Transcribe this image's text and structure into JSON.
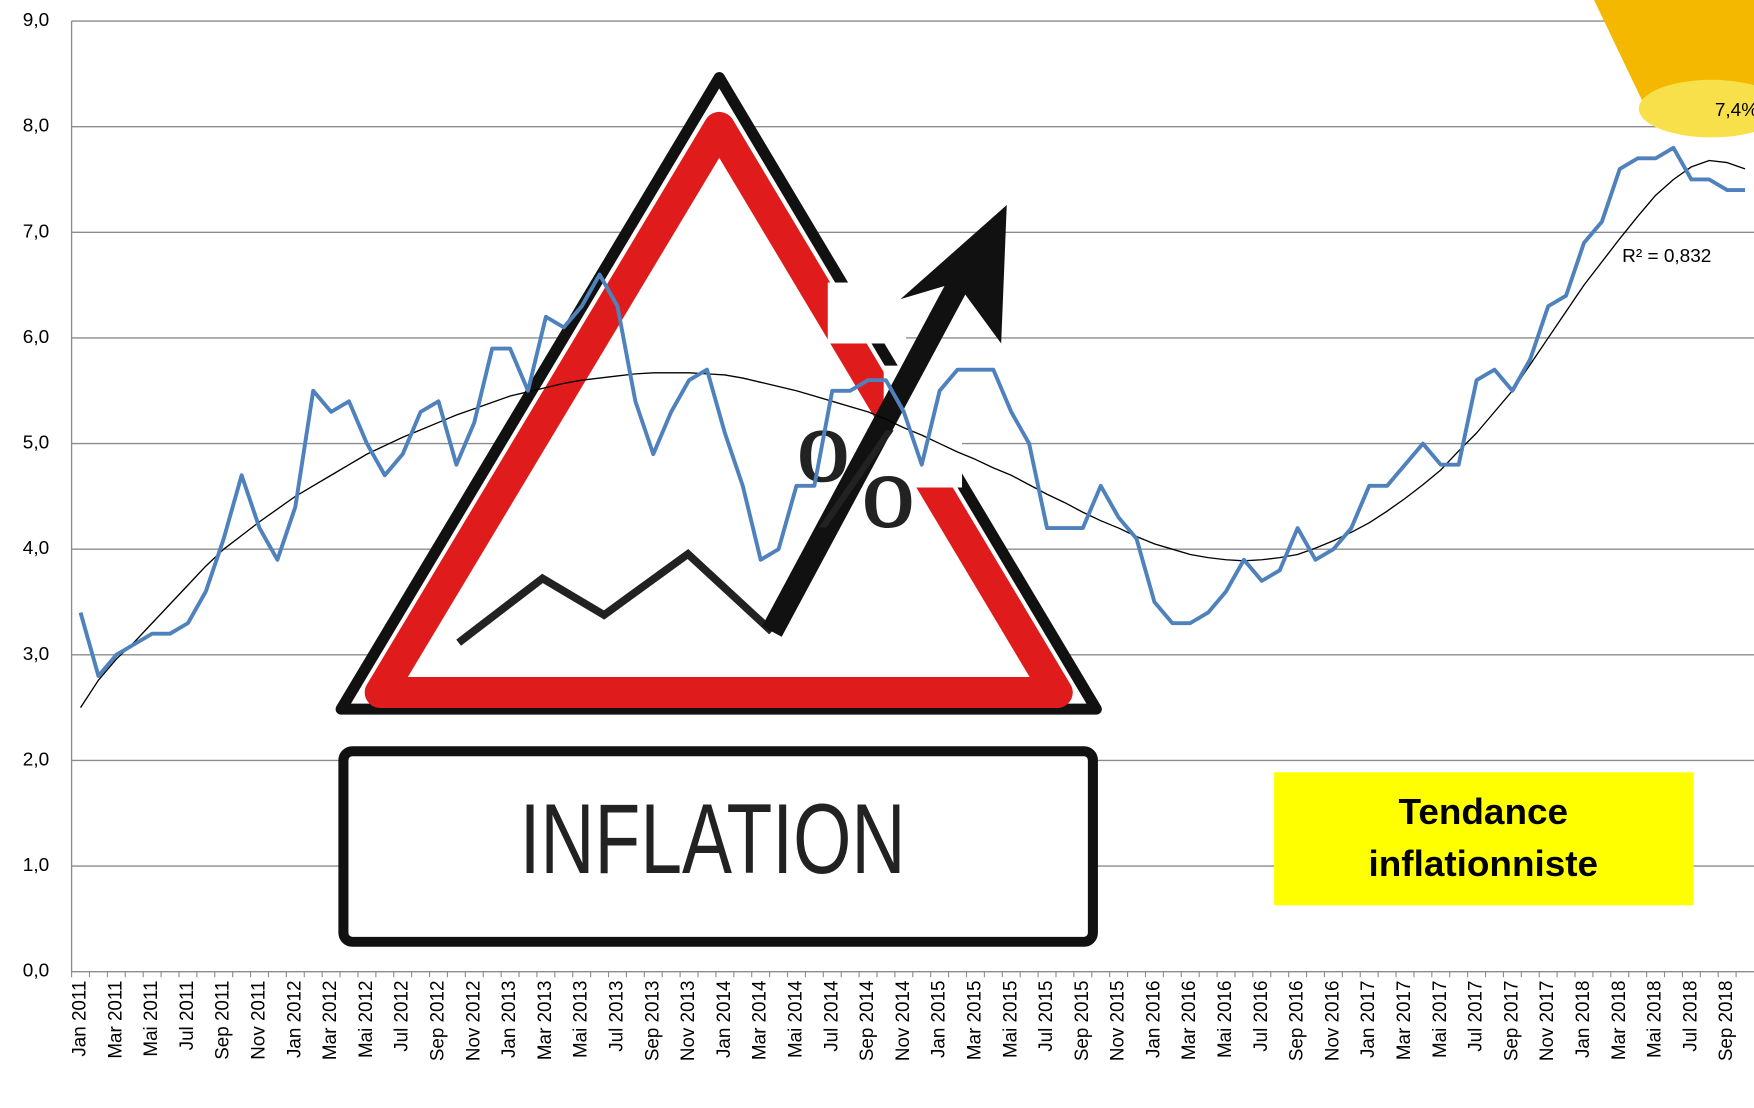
{
  "chart_data": {
    "type": "line",
    "categories": [
      "Jan 2011",
      null,
      "Mar 2011",
      null,
      "Mai 2011",
      null,
      "Jul 2011",
      null,
      "Sep 2011",
      null,
      "Nov 2011",
      null,
      "Jan 2012",
      null,
      "Mar 2012",
      null,
      "Mai 2012",
      null,
      "Jul 2012",
      null,
      "Sep 2012",
      null,
      "Nov 2012",
      null,
      "Jan 2013",
      null,
      "Mar 2013",
      null,
      "Mai 2013",
      null,
      "Jul 2013",
      null,
      "Sep 2013",
      null,
      "Nov 2013",
      null,
      "Jan 2014",
      null,
      "Mar 2014",
      null,
      "Mai 2014",
      null,
      "Jul 2014",
      null,
      "Sep 2014",
      null,
      "Nov 2014",
      null,
      "Jan 2015",
      null,
      "Mar 2015",
      null,
      "Mai 2015",
      null,
      "Jul 2015",
      null,
      "Sep 2015",
      null,
      "Nov 2015",
      null,
      "Jan 2016",
      null,
      "Mar 2016",
      null,
      "Mai 2016",
      null,
      "Jul 2016",
      null,
      "Sep 2016",
      null,
      "Nov 2016",
      null,
      "Jan 2017",
      null,
      "Mar 2017",
      null,
      "Mai 2017",
      null,
      "Jul 2017",
      null,
      "Sep 2017",
      null,
      "Nov 2017",
      null,
      "Jan 2018",
      null,
      "Mar 2018",
      null,
      "Mai 2018",
      null,
      "Jul 2018",
      null,
      "Sep 2018",
      null
    ],
    "series": [
      {
        "color": "#4f81bd",
        "values": [
          3.4,
          2.8,
          3.0,
          3.1,
          3.2,
          3.2,
          3.3,
          3.6,
          4.1,
          4.7,
          4.2,
          3.9,
          4.4,
          5.5,
          5.3,
          5.4,
          5.0,
          4.7,
          4.9,
          5.3,
          5.4,
          4.8,
          5.2,
          5.9,
          5.9,
          5.5,
          6.2,
          6.1,
          6.3,
          6.6,
          6.3,
          5.4,
          4.9,
          5.3,
          5.6,
          5.7,
          5.1,
          4.6,
          3.9,
          4.0,
          4.6,
          4.6,
          5.5,
          5.5,
          5.6,
          5.6,
          5.3,
          4.8,
          5.5,
          5.7,
          5.7,
          5.7,
          5.3,
          5.0,
          4.2,
          4.2,
          4.2,
          4.6,
          4.3,
          4.1,
          3.5,
          3.3,
          3.3,
          3.4,
          3.6,
          3.9,
          3.7,
          3.8,
          4.2,
          3.9,
          4.0,
          4.2,
          4.6,
          4.6,
          4.8,
          5.0,
          4.8,
          4.8,
          5.6,
          5.7,
          5.5,
          5.8,
          6.3,
          6.4,
          6.9,
          7.1,
          7.6,
          7.7,
          7.7,
          7.8,
          7.5,
          7.5,
          7.4,
          7.4
        ]
      },
      {
        "color": "#000000",
        "values": [
          2.5,
          2.76,
          2.96,
          3.12,
          3.3,
          3.48,
          3.66,
          3.84,
          4.0,
          4.13,
          4.26,
          4.38,
          4.5,
          4.6,
          4.7,
          4.8,
          4.9,
          4.98,
          5.06,
          5.13,
          5.2,
          5.27,
          5.33,
          5.39,
          5.45,
          5.49,
          5.53,
          5.57,
          5.6,
          5.62,
          5.64,
          5.66,
          5.67,
          5.67,
          5.67,
          5.66,
          5.65,
          5.62,
          5.58,
          5.54,
          5.5,
          5.45,
          5.4,
          5.35,
          5.3,
          5.23,
          5.15,
          5.08,
          5.0,
          4.92,
          4.85,
          4.77,
          4.7,
          4.61,
          4.52,
          4.44,
          4.35,
          4.27,
          4.2,
          4.12,
          4.05,
          4.0,
          3.95,
          3.92,
          3.9,
          3.89,
          3.9,
          3.92,
          3.95,
          4.01,
          4.08,
          4.16,
          4.25,
          4.36,
          4.48,
          4.61,
          4.75,
          4.93,
          5.1,
          5.3,
          5.5,
          5.75,
          6.0,
          6.25,
          6.5,
          6.72,
          6.94,
          7.15,
          7.35,
          7.5,
          7.62,
          7.68,
          7.66,
          7.6
        ]
      }
    ],
    "ylim": [
      0,
      9
    ],
    "yticks": [
      {
        "value": 0,
        "label": "0,0"
      },
      {
        "value": 1,
        "label": "1,0"
      },
      {
        "value": 2,
        "label": "2,0"
      },
      {
        "value": 3,
        "label": "3,0"
      },
      {
        "value": 4,
        "label": "4,0"
      },
      {
        "value": 5,
        "label": "5,0"
      },
      {
        "value": 6,
        "label": "6,0"
      },
      {
        "value": 7,
        "label": "7,0"
      },
      {
        "value": 8,
        "label": "8,0"
      },
      {
        "value": 9,
        "label": "9,0"
      }
    ],
    "grid": true,
    "annotations": {
      "r_squared": "R² = 0,832",
      "callout": [
        "Tendance",
        "inflationniste"
      ],
      "bubble": "7,4%",
      "sign_text": "INFLATION",
      "sign_symbol": "%"
    }
  }
}
